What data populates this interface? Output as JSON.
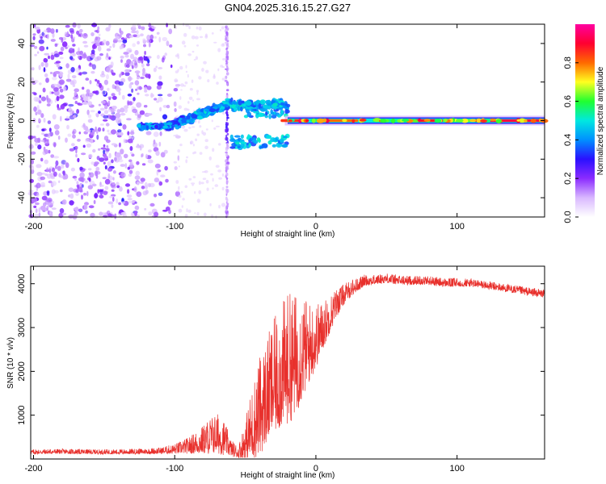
{
  "title": "GN04.2025.316.15.27.G27",
  "colors": {
    "snr_line": "#e8302c",
    "colormap": [
      "#ffffff",
      "#d9b8ff",
      "#8b2cff",
      "#2a10ff",
      "#0090ff",
      "#00e8e0",
      "#20ff30",
      "#ffff20",
      "#ff6a00",
      "#ff0030",
      "#ff00a0"
    ]
  },
  "chart_data": [
    {
      "type": "heatmap",
      "name": "spectrogram",
      "xlabel": "Height of straight line (km)",
      "ylabel": "Frequency (Hz)",
      "xlim": [
        -202,
        162
      ],
      "ylim": [
        -50,
        50
      ],
      "xticks": [
        -200,
        -100,
        0,
        100
      ],
      "xtick_labels": [
        "-200",
        "-100",
        "0",
        "100"
      ],
      "yticks": [
        -40,
        -20,
        0,
        20,
        40
      ],
      "ytick_labels": [
        "-40",
        "-20",
        "0",
        "20",
        "40"
      ],
      "colorbar": {
        "label": "Normalized spectral amplitude",
        "range": [
          0,
          1
        ],
        "ticks": [
          0,
          0.2,
          0.4,
          0.6,
          0.8
        ],
        "tick_labels": [
          "0.0",
          "0.2",
          "0.4",
          "0.6",
          "0.8"
        ]
      },
      "features": [
        {
          "description": "scattered noise",
          "x_range": [
            -202,
            -100
          ],
          "freq_range": [
            -50,
            50
          ],
          "amplitude": 0.15
        },
        {
          "description": "narrow spike",
          "x": -63,
          "freq_range": [
            -50,
            50
          ],
          "amplitude": 0.1
        },
        {
          "description": "signal track",
          "x_range": [
            -125,
            -20
          ],
          "freq_range": [
            -8,
            12
          ],
          "amplitude": 0.4
        },
        {
          "description": "carrier line",
          "x_range": [
            -20,
            162
          ],
          "freq": 0,
          "amplitude": 0.9
        }
      ]
    },
    {
      "type": "line",
      "name": "snr",
      "xlabel": "Height of straight line (km)",
      "ylabel": "SNR (10 * v/v)",
      "xlim": [
        -202,
        162
      ],
      "ylim": [
        0,
        4400
      ],
      "xticks": [
        -200,
        -100,
        0,
        100
      ],
      "xtick_labels": [
        "-200",
        "-100",
        "0",
        "100"
      ],
      "yticks": [
        1000,
        2000,
        3000,
        4000
      ],
      "ytick_labels": [
        "1000",
        "2000",
        "3000",
        "4000"
      ],
      "series": [
        {
          "name": "SNR",
          "x": [
            -202,
            -180,
            -160,
            -140,
            -120,
            -110,
            -100,
            -90,
            -80,
            -75,
            -70,
            -65,
            -60,
            -55,
            -50,
            -45,
            -40,
            -35,
            -30,
            -25,
            -20,
            -15,
            -10,
            -5,
            0,
            5,
            10,
            15,
            20,
            25,
            30,
            35,
            40,
            50,
            60,
            70,
            80,
            90,
            100,
            110,
            120,
            130,
            140,
            150,
            162
          ],
          "y": [
            150,
            160,
            150,
            150,
            160,
            170,
            200,
            260,
            350,
            420,
            460,
            380,
            200,
            120,
            300,
            600,
            900,
            1200,
            1500,
            1700,
            1900,
            2000,
            2200,
            2400,
            2600,
            2900,
            3200,
            3500,
            3700,
            3850,
            3950,
            4050,
            4050,
            4100,
            4050,
            4050,
            4050,
            4000,
            4000,
            4000,
            3950,
            3900,
            3850,
            3800,
            3750
          ],
          "noise": [
            60,
            60,
            60,
            60,
            70,
            80,
            120,
            200,
            350,
            450,
            500,
            420,
            200,
            150,
            500,
            900,
            1200,
            1300,
            1400,
            1500,
            1600,
            1500,
            1300,
            1000,
            800,
            600,
            450,
            350,
            250,
            200,
            160,
            140,
            120,
            120,
            120,
            110,
            110,
            110,
            110,
            100,
            100,
            100,
            100,
            100,
            100
          ]
        }
      ]
    }
  ]
}
